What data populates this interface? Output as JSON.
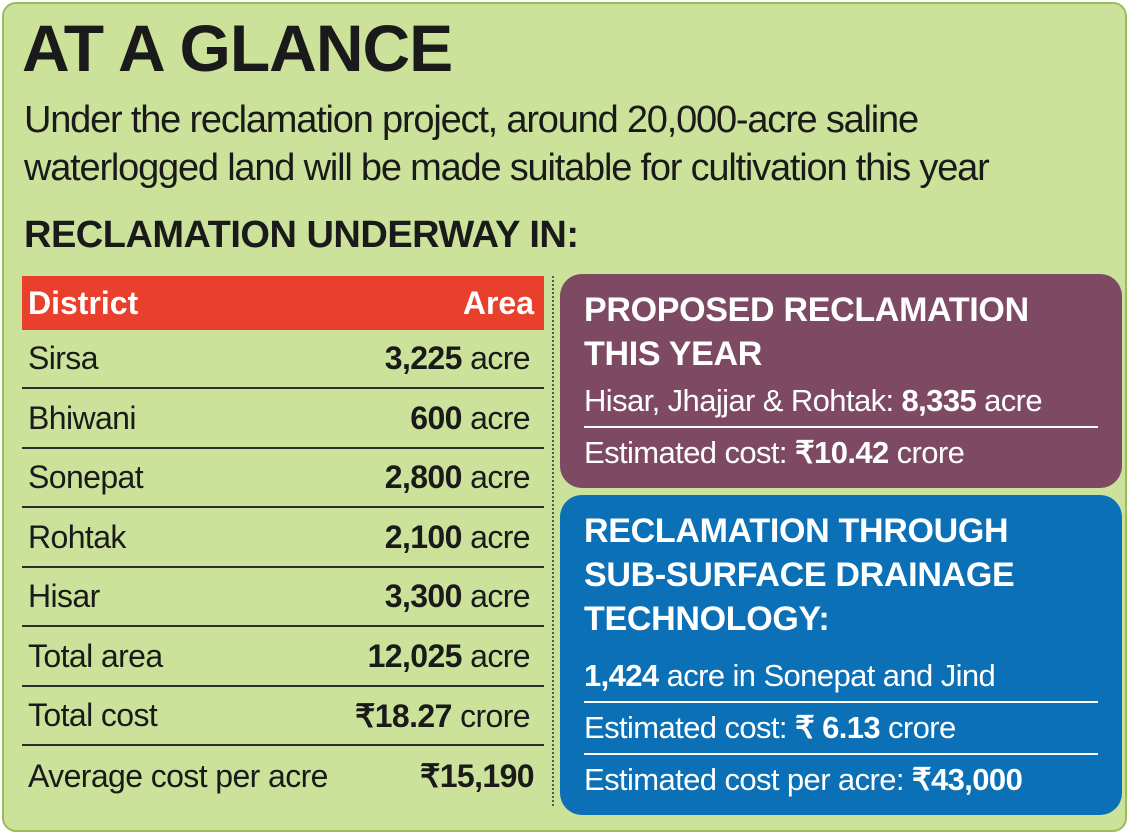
{
  "header": {
    "title": "AT A GLANCE",
    "subtitle": "Under the reclamation project, around 20,000-acre saline waterlogged land will be made suitable for cultivation this year"
  },
  "table": {
    "title": "RECLAMATION UNDERWAY IN:",
    "columns": [
      "District",
      "Area"
    ],
    "rows": [
      {
        "district": "Sirsa",
        "value": "3,225",
        "unit": "acre"
      },
      {
        "district": "Bhiwani",
        "value": "600",
        "unit": "acre"
      },
      {
        "district": "Sonepat",
        "value": "2,800",
        "unit": "acre"
      },
      {
        "district": "Rohtak",
        "value": "2,100",
        "unit": "acre"
      },
      {
        "district": "Hisar",
        "value": "3,300",
        "unit": "acre"
      },
      {
        "district": "Total area",
        "value": "12,025",
        "unit": "acre"
      },
      {
        "district": "Total cost",
        "value": "₹18.27",
        "unit": "crore"
      },
      {
        "district": "Average cost per acre",
        "value": "₹15,190"
      }
    ]
  },
  "proposed": {
    "title": "PROPOSED RECLAMATION THIS YEAR",
    "area_label": "Hisar, Jhajjar & Rohtak:",
    "area_value": "8,335",
    "area_unit": "acre",
    "cost_label": "Estimated cost:",
    "cost_value": "₹10.42",
    "cost_unit": "crore"
  },
  "subsurface": {
    "title": "RECLAMATION THROUGH SUB-SURFACE DRAINAGE TECHNOLOGY:",
    "area_value": "1,424",
    "area_text": "acre in Sonepat and Jind",
    "cost_label": "Estimated cost:",
    "cost_value": "₹ 6.13",
    "cost_unit": "crore",
    "per_acre_label": "Estimated cost per acre:",
    "per_acre_value": "₹43,000"
  }
}
